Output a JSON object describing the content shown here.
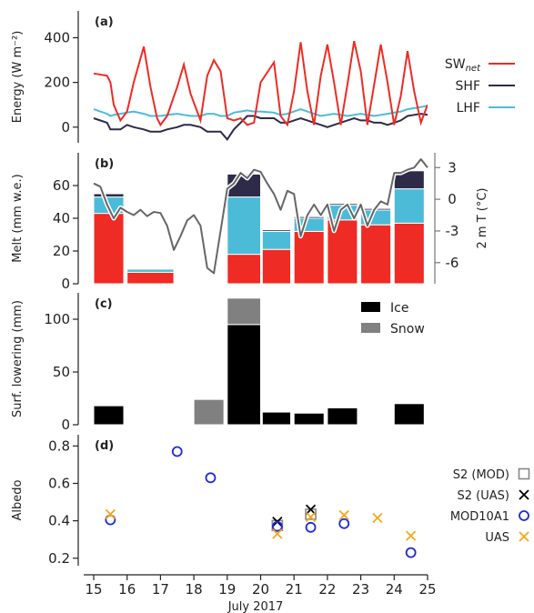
{
  "chart_data": [
    {
      "panel": "(a)",
      "type": "line",
      "ylabel": "Energy (W m⁻²)",
      "ylim": [
        -70,
        520
      ],
      "yticks": [
        0,
        200,
        400
      ],
      "x": [
        15.0,
        15.4,
        15.5,
        15.6,
        15.8,
        16.0,
        16.2,
        16.5,
        16.7,
        16.9,
        17.0,
        17.2,
        17.5,
        17.7,
        17.9,
        18.2,
        18.4,
        18.6,
        18.8,
        19.0,
        19.2,
        19.4,
        19.6,
        19.8,
        20.0,
        20.4,
        20.6,
        20.8,
        21.0,
        21.2,
        21.4,
        21.6,
        21.8,
        22.0,
        22.2,
        22.4,
        22.6,
        22.8,
        23.0,
        23.2,
        23.4,
        23.6,
        23.8,
        24.0,
        24.2,
        24.4,
        24.6,
        24.8,
        25.0
      ],
      "series": [
        {
          "name": "SW",
          "name_sub": "net",
          "color": "#ee2b24",
          "values": [
            240,
            230,
            200,
            100,
            30,
            70,
            200,
            360,
            180,
            40,
            10,
            50,
            180,
            280,
            150,
            30,
            230,
            300,
            250,
            40,
            30,
            40,
            10,
            20,
            200,
            290,
            50,
            10,
            160,
            380,
            160,
            10,
            230,
            370,
            200,
            10,
            190,
            385,
            250,
            10,
            190,
            370,
            200,
            10,
            140,
            340,
            160,
            20,
            100
          ]
        },
        {
          "name": "SHF",
          "color": "#2e2b48",
          "values": [
            40,
            20,
            -10,
            -10,
            -10,
            10,
            0,
            -10,
            -20,
            -20,
            -20,
            -10,
            0,
            10,
            10,
            0,
            -20,
            -20,
            -20,
            -55,
            -10,
            20,
            50,
            50,
            40,
            40,
            20,
            20,
            30,
            40,
            30,
            20,
            10,
            0,
            10,
            20,
            30,
            40,
            30,
            30,
            20,
            20,
            10,
            20,
            30,
            50,
            55,
            60,
            55
          ]
        },
        {
          "name": "LHF",
          "color": "#4cbbd8",
          "values": [
            80,
            60,
            50,
            55,
            60,
            65,
            70,
            60,
            50,
            50,
            50,
            55,
            60,
            55,
            50,
            50,
            60,
            60,
            50,
            50,
            65,
            70,
            75,
            70,
            70,
            65,
            55,
            60,
            70,
            80,
            70,
            60,
            50,
            55,
            60,
            55,
            50,
            55,
            60,
            55,
            50,
            55,
            60,
            65,
            70,
            80,
            85,
            90,
            95
          ]
        }
      ]
    },
    {
      "panel": "(b)",
      "type": "bar",
      "ylabel": "Melt (mm w.e.)",
      "ylim": [
        0,
        80
      ],
      "yticks": [
        0,
        20,
        40,
        60
      ],
      "y2label": "2 m T (°C)",
      "y2lim": [
        -8,
        4.4
      ],
      "y2ticks": [
        -6,
        -3,
        0,
        3
      ],
      "stacks": [
        {
          "x0": 15.0,
          "x1": 15.9,
          "red": 43,
          "cyan": 10,
          "dark": 2
        },
        {
          "x0": 16.0,
          "x1": 17.4,
          "red": 7,
          "cyan": 2,
          "dark": 0.5
        },
        {
          "x0": 19.0,
          "x1": 20.0,
          "red": 18,
          "cyan": 35,
          "dark": 14
        },
        {
          "x0": 20.05,
          "x1": 20.9,
          "red": 21,
          "cyan": 11,
          "dark": 1
        },
        {
          "x0": 21.0,
          "x1": 21.9,
          "red": 32,
          "cyan": 8,
          "dark": 1
        },
        {
          "x0": 22.0,
          "x1": 22.9,
          "red": 39,
          "cyan": 9,
          "dark": 1
        },
        {
          "x0": 23.0,
          "x1": 23.9,
          "red": 36,
          "cyan": 9,
          "dark": 1
        },
        {
          "x0": 24.0,
          "x1": 24.9,
          "red": 37,
          "cyan": 21,
          "dark": 11
        }
      ],
      "temperature": {
        "color": "#666666",
        "x": [
          15.0,
          15.2,
          15.4,
          15.6,
          15.8,
          16.0,
          16.2,
          16.4,
          16.6,
          16.8,
          17.0,
          17.2,
          17.4,
          17.6,
          17.8,
          18.0,
          18.2,
          18.4,
          18.6,
          18.8,
          19.0,
          19.2,
          19.4,
          19.6,
          19.8,
          20.0,
          20.2,
          20.4,
          20.6,
          20.8,
          21.0,
          21.2,
          21.4,
          21.6,
          21.8,
          22.0,
          22.2,
          22.4,
          22.6,
          22.8,
          23.0,
          23.2,
          23.4,
          23.6,
          23.8,
          24.0,
          24.2,
          24.4,
          24.6,
          24.8,
          25.0
        ],
        "values": [
          1.5,
          1.2,
          -0.5,
          -1.8,
          -0.8,
          -1.2,
          -1.5,
          -1.0,
          -1.6,
          -1.2,
          -1.3,
          -2.5,
          -4.8,
          -3.5,
          -2.0,
          -1.5,
          -2.5,
          -6.5,
          -7.0,
          -3.0,
          1.0,
          1.5,
          2.5,
          2.0,
          2.8,
          2.6,
          1.5,
          0.5,
          -1.0,
          0.8,
          0.5,
          -3.5,
          -1.5,
          -0.5,
          -1.5,
          -0.5,
          -3.0,
          -1.0,
          -0.5,
          -1.8,
          -0.5,
          -2.5,
          -1.0,
          -0.2,
          -0.5,
          2.5,
          2.5,
          2.8,
          3.0,
          3.8,
          3.0
        ]
      }
    },
    {
      "panel": "(c)",
      "type": "bar",
      "ylabel": "Surf. lowering (mm)",
      "ylim": [
        0,
        125
      ],
      "yticks": [
        0,
        50,
        100
      ],
      "legend": [
        {
          "name": "Ice",
          "color": "#000000"
        },
        {
          "name": "Snow",
          "color": "#808080"
        }
      ],
      "bars": [
        {
          "x0": 15.0,
          "x1": 15.9,
          "ice": 18,
          "snow": 0
        },
        {
          "x0": 18.0,
          "x1": 18.9,
          "ice": 0,
          "snow": 24
        },
        {
          "x0": 19.0,
          "x1": 20.0,
          "ice": 95,
          "snow": 25
        },
        {
          "x0": 20.05,
          "x1": 20.9,
          "ice": 12,
          "snow": 0
        },
        {
          "x0": 21.0,
          "x1": 21.9,
          "ice": 11,
          "snow": 0
        },
        {
          "x0": 22.0,
          "x1": 22.9,
          "ice": 16,
          "snow": 0
        },
        {
          "x0": 24.0,
          "x1": 24.9,
          "ice": 20,
          "snow": 0
        }
      ]
    },
    {
      "panel": "(d)",
      "type": "scatter",
      "ylabel": "Albedo",
      "ylim": [
        0.16,
        0.86
      ],
      "yticks": [
        0.2,
        0.4,
        0.6,
        0.8
      ],
      "xlabel": "July 2017",
      "xlim": [
        14.7,
        25.0
      ],
      "xticks": [
        15,
        16,
        17,
        18,
        19,
        20,
        21,
        22,
        23,
        24,
        25
      ],
      "series": [
        {
          "name": "S2 (MOD)",
          "marker": "square",
          "color": "#888888",
          "points": [
            [
              20.5,
              0.375
            ],
            [
              21.5,
              0.435
            ]
          ]
        },
        {
          "name": "S2 (UAS)",
          "marker": "x",
          "color": "#000000",
          "points": [
            [
              20.5,
              0.395
            ],
            [
              21.5,
              0.46
            ]
          ]
        },
        {
          "name": "MOD10A1",
          "marker": "circle",
          "color": "#1f2ad8",
          "points": [
            [
              15.5,
              0.405
            ],
            [
              17.5,
              0.77
            ],
            [
              18.5,
              0.63
            ],
            [
              20.5,
              0.37
            ],
            [
              21.5,
              0.365
            ],
            [
              22.5,
              0.385
            ],
            [
              24.5,
              0.23
            ]
          ]
        },
        {
          "name": "UAS",
          "marker": "x",
          "color": "#f4a81c",
          "points": [
            [
              15.5,
              0.435
            ],
            [
              20.5,
              0.33
            ],
            [
              21.5,
              0.42
            ],
            [
              22.5,
              0.43
            ],
            [
              23.5,
              0.415
            ],
            [
              24.5,
              0.32
            ]
          ]
        }
      ]
    }
  ]
}
